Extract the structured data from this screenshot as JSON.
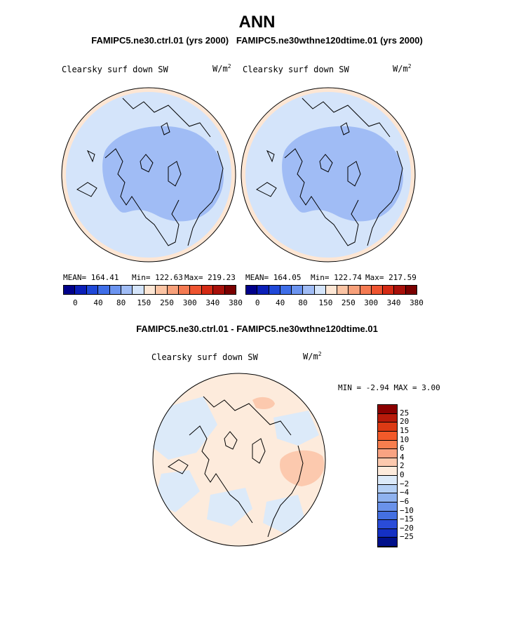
{
  "title": "ANN",
  "subtitle_left": "FAMIPC5.ne30.ctrl.01 (yrs 2000)",
  "subtitle_right": "FAMIPC5.ne30wthne120dtime.01 (yrs 2000)",
  "panels": [
    {
      "label": "Clearsky surf down SW",
      "units": "W/m",
      "units_sup": "2",
      "mean": "MEAN= 164.41",
      "min": "Min= 122.63",
      "max": "Max= 219.23"
    },
    {
      "label": "Clearsky surf down SW",
      "units": "W/m",
      "units_sup": "2",
      "mean": "MEAN= 164.05",
      "min": "Min= 122.74",
      "max": "Max= 217.59"
    }
  ],
  "top_colorbar": {
    "colors": [
      "#00008a",
      "#0b1fb8",
      "#1f48d8",
      "#3f6ee8",
      "#6b94f0",
      "#a0bcf5",
      "#d4e4fa",
      "#fde6d4",
      "#fbc4a4",
      "#f7a07a",
      "#f47a52",
      "#ee5430",
      "#d42a14",
      "#a8100a",
      "#7a0000"
    ],
    "ticks": [
      "0",
      "40",
      "80",
      "150",
      "250",
      "300",
      "340",
      "380"
    ]
  },
  "diff_title": "FAMIPC5.ne30.ctrl.01 - FAMIPC5.ne30wthne120dtime.01",
  "diff_panel": {
    "label": "Clearsky surf down SW",
    "units": "W/m",
    "units_sup": "2",
    "min_label": "MIN =",
    "min_value": "-2.94",
    "max_label": "MAX =",
    "max_value": "3.00"
  },
  "diff_colorbar": {
    "colors": [
      "#8b0000",
      "#b81a0a",
      "#dc3a14",
      "#f25a2a",
      "#f77e4e",
      "#f9a382",
      "#fcc9ae",
      "#fdebdc",
      "#dceaf9",
      "#b5d0f5",
      "#8fb2ef",
      "#6a92ea",
      "#4470e2",
      "#2a4cd8",
      "#1430c4",
      "#00108a"
    ],
    "labels": [
      "25",
      "20",
      "15",
      "10",
      "6",
      "4",
      "2",
      "0",
      "−2",
      "−4",
      "−6",
      "−10",
      "−15",
      "−20",
      "−25"
    ]
  }
}
